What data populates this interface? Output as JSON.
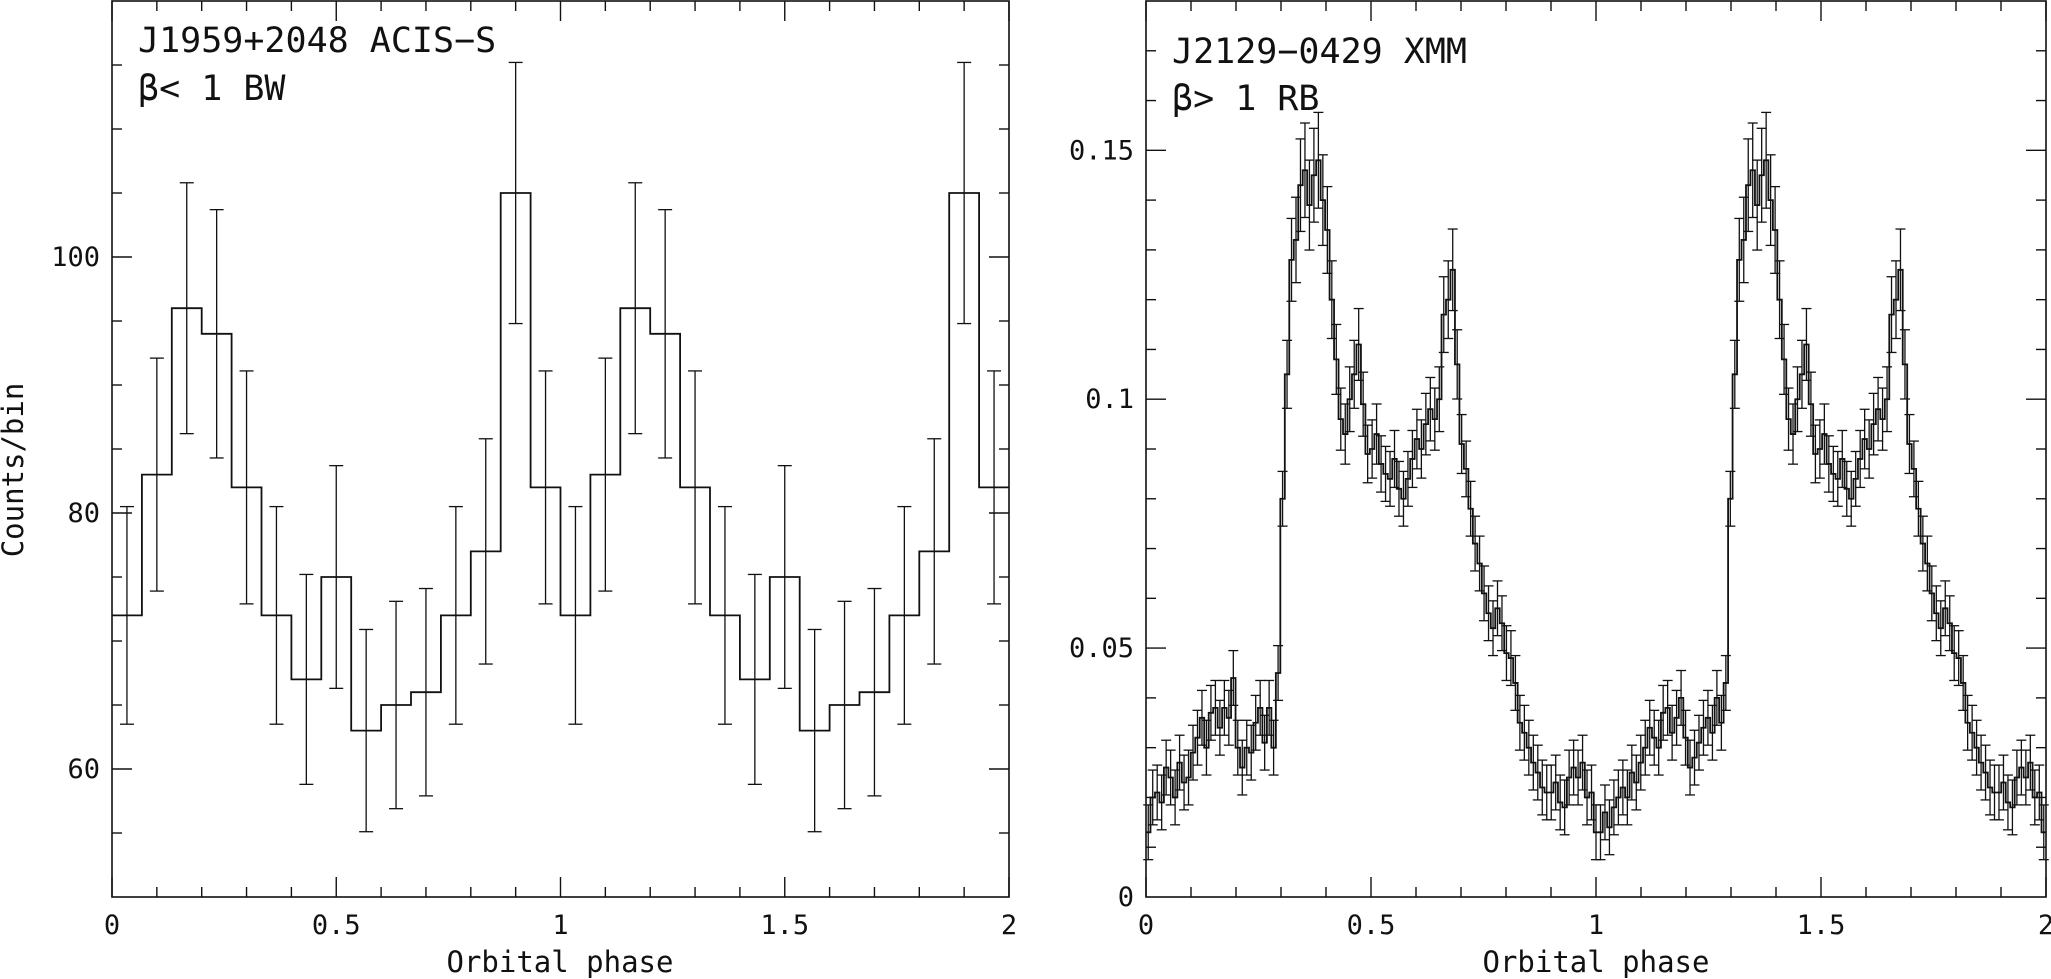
{
  "chart_data": [
    {
      "type": "line",
      "style": "step histogram with error bars",
      "annotation_line1": "J1959+2048 ACIS−S",
      "annotation_line2": "β< 1 BW",
      "xlabel": "Orbital phase",
      "ylabel": "Counts/bin",
      "xlim": [
        0,
        2
      ],
      "ylim": [
        50,
        120
      ],
      "x_ticks": [
        "0",
        "0.5",
        "1",
        "1.5",
        "2"
      ],
      "y_ticks": [
        "60",
        "80",
        "100"
      ],
      "y_tick_values": [
        60,
        80,
        100
      ],
      "x_tick_values": [
        0,
        0.5,
        1,
        1.5,
        2
      ],
      "bin_width": 0.0667,
      "values": [
        72,
        83,
        96,
        94,
        82,
        72,
        67,
        75,
        63,
        65,
        66,
        72,
        77,
        105,
        82,
        72,
        83,
        96,
        94,
        82,
        72,
        67,
        75,
        63,
        65,
        66,
        72,
        77,
        105,
        82
      ],
      "errors": [
        8.5,
        9.1,
        9.8,
        9.7,
        9.1,
        8.5,
        8.2,
        8.7,
        7.9,
        8.1,
        8.1,
        8.5,
        8.8,
        10.2,
        9.1,
        8.5,
        9.1,
        9.8,
        9.7,
        9.1,
        8.5,
        8.2,
        8.7,
        7.9,
        8.1,
        8.1,
        8.5,
        8.8,
        10.2,
        9.1
      ]
    },
    {
      "type": "line",
      "style": "step histogram with error bars",
      "annotation_line1": "J2129−0429 XMM",
      "annotation_line2": "β> 1 RB",
      "xlabel": "Orbital phase",
      "ylabel": "",
      "xlim": [
        0,
        2
      ],
      "ylim": [
        0,
        0.18
      ],
      "x_ticks": [
        "0",
        "0.5",
        "1",
        "1.5",
        "2"
      ],
      "y_ticks": [
        "0",
        "0.05",
        "0.1",
        "0.15"
      ],
      "y_tick_values": [
        0,
        0.05,
        0.1,
        0.15
      ],
      "x_tick_values": [
        0,
        0.5,
        1,
        1.5,
        2
      ],
      "bin_width": 0.01,
      "values": [
        0.013,
        0.02,
        0.021,
        0.019,
        0.026,
        0.024,
        0.02,
        0.027,
        0.023,
        0.024,
        0.029,
        0.032,
        0.036,
        0.03,
        0.037,
        0.038,
        0.034,
        0.038,
        0.036,
        0.044,
        0.03,
        0.026,
        0.03,
        0.029,
        0.035,
        0.038,
        0.031,
        0.038,
        0.03,
        0.045,
        0.08,
        0.105,
        0.128,
        0.132,
        0.143,
        0.146,
        0.139,
        0.145,
        0.148,
        0.14,
        0.134,
        0.12,
        0.108,
        0.096,
        0.093,
        0.1,
        0.105,
        0.111,
        0.099,
        0.089,
        0.09,
        0.093,
        0.087,
        0.085,
        0.084,
        0.088,
        0.082,
        0.08,
        0.084,
        0.088,
        0.092,
        0.09,
        0.095,
        0.098,
        0.096,
        0.1,
        0.117,
        0.12,
        0.126,
        0.107,
        0.091,
        0.086,
        0.078,
        0.071,
        0.067,
        0.061,
        0.057,
        0.054,
        0.058,
        0.055,
        0.049,
        0.048,
        0.043,
        0.035,
        0.033,
        0.03,
        0.027,
        0.025,
        0.022,
        0.021,
        0.021,
        0.023,
        0.019,
        0.018,
        0.024,
        0.026,
        0.024,
        0.027,
        0.02,
        0.021,
        0.013,
        0.013,
        0.017,
        0.014,
        0.018,
        0.02,
        0.022,
        0.02,
        0.025,
        0.023,
        0.027,
        0.03,
        0.034,
        0.032,
        0.03,
        0.037,
        0.038,
        0.033,
        0.036,
        0.04,
        0.032,
        0.026,
        0.028,
        0.031,
        0.034,
        0.036,
        0.033,
        0.04,
        0.035,
        0.043,
        0.08,
        0.105,
        0.128,
        0.132,
        0.143,
        0.146,
        0.139,
        0.145,
        0.148,
        0.14,
        0.134,
        0.12,
        0.108,
        0.096,
        0.093,
        0.1,
        0.105,
        0.111,
        0.099,
        0.089,
        0.09,
        0.093,
        0.087,
        0.085,
        0.084,
        0.088,
        0.082,
        0.08,
        0.084,
        0.088,
        0.092,
        0.09,
        0.095,
        0.098,
        0.096,
        0.1,
        0.117,
        0.12,
        0.126,
        0.107,
        0.091,
        0.086,
        0.078,
        0.071,
        0.067,
        0.061,
        0.057,
        0.054,
        0.058,
        0.055,
        0.049,
        0.048,
        0.043,
        0.035,
        0.033,
        0.03,
        0.027,
        0.025,
        0.022,
        0.021,
        0.021,
        0.023,
        0.019,
        0.018,
        0.024,
        0.026,
        0.024,
        0.027,
        0.02,
        0.021,
        0.013
      ],
      "error_fraction": 0.065,
      "error_min": 0.0055
    }
  ]
}
